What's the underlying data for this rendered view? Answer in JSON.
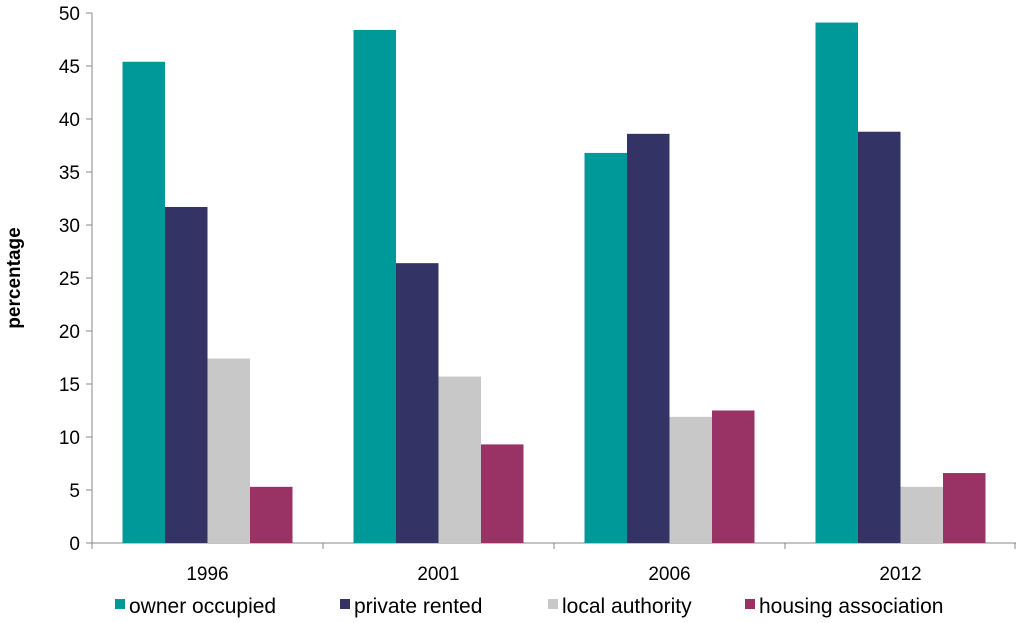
{
  "chart_data": {
    "type": "bar",
    "categories": [
      "1996",
      "2001",
      "2006",
      "2012"
    ],
    "series": [
      {
        "name": "owner occupied",
        "color": "#009999",
        "values": [
          45.4,
          48.4,
          36.8,
          49.1
        ]
      },
      {
        "name": "private rented",
        "color": "#333366",
        "values": [
          31.7,
          26.4,
          38.6,
          38.8
        ]
      },
      {
        "name": "local authority",
        "color": "#c8c8c8",
        "values": [
          17.4,
          15.7,
          11.9,
          5.3
        ]
      },
      {
        "name": "housing association",
        "color": "#993366",
        "values": [
          5.3,
          9.3,
          12.5,
          6.6
        ]
      }
    ],
    "title": "",
    "xlabel": "",
    "ylabel": "percentage",
    "ylim": [
      0,
      50
    ],
    "yticks": [
      0,
      5,
      10,
      15,
      20,
      25,
      30,
      35,
      40,
      45,
      50
    ],
    "grid": false,
    "legend_position": "bottom"
  }
}
